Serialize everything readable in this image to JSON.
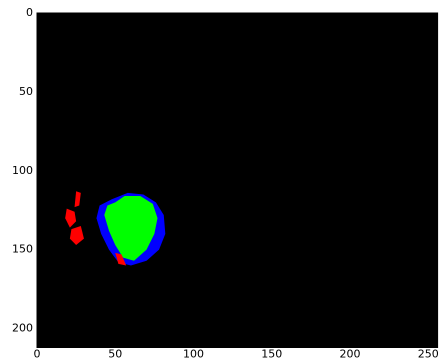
{
  "chart_data": {
    "type": "image",
    "background": "#000000",
    "xlim": [
      0,
      256
    ],
    "ylim": [
      0,
      212
    ],
    "invert_y": true,
    "xticks": [
      0,
      50,
      100,
      150,
      200,
      250
    ],
    "yticks": [
      0,
      50,
      100,
      150,
      200
    ],
    "series": [
      {
        "color": "#0000ff",
        "x": [
          48,
          58,
          68,
          76,
          81,
          82,
          78,
          70,
          60,
          52,
          46,
          41,
          38,
          40
        ],
        "y": [
          118,
          114,
          115,
          120,
          128,
          140,
          150,
          157,
          160,
          158,
          150,
          140,
          130,
          122
        ]
      },
      {
        "color": "#00ff00",
        "x": [
          50,
          56,
          66,
          74,
          77,
          75,
          70,
          62,
          55,
          50,
          46,
          43,
          45
        ],
        "y": [
          120,
          116,
          116,
          121,
          130,
          140,
          150,
          157,
          155,
          147,
          138,
          128,
          122
        ]
      },
      {
        "color": "#ff0000",
        "x": [
          25,
          28,
          27,
          24
        ],
        "y": [
          113,
          114,
          122,
          123
        ]
      },
      {
        "color": "#ff0000",
        "x": [
          19,
          24,
          25,
          21,
          18
        ],
        "y": [
          124,
          126,
          132,
          136,
          130
        ]
      },
      {
        "color": "#ff0000",
        "x": [
          22,
          28,
          30,
          25,
          21
        ],
        "y": [
          137,
          135,
          143,
          147,
          143
        ]
      },
      {
        "color": "#ff0000",
        "x": [
          50,
          54,
          57,
          52
        ],
        "y": [
          152,
          153,
          160,
          159
        ]
      }
    ]
  }
}
